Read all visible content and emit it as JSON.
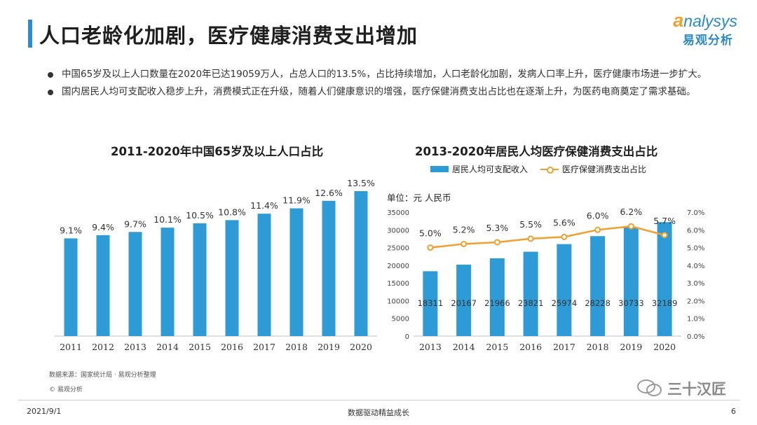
{
  "page": {
    "title": "人口老龄化加剧，医疗健康消费支出增加",
    "bullets": [
      "中国65岁及以上人口数量在2020年已达19059万人，占总人口的13.5%，占比持续增加，人口老龄化加剧，发病人口率上升，医疗健康市场进一步扩大。",
      "国内居民人均可支配收入稳步上升，消费模式正在升级，随着人们健康意识的增强，医疗保健消费支出占比也在逐渐上升，为医药电商奠定了需求基础。"
    ]
  },
  "logo": {
    "en_cap": "a",
    "en_rest": "nalysys",
    "cn": "易观分析"
  },
  "footer": {
    "source": "数据来源：国家统计局 · 易观分析整理",
    "copyright": "© 易观分析",
    "date": "2021/9/1",
    "center": "数据驱动精益成长",
    "page": "6",
    "watermark": "三十汉匠"
  },
  "colors": {
    "bar": "#2e9bd6",
    "line": "#f0a030",
    "accent": "#2c8bc8"
  },
  "chart_data": [
    {
      "type": "bar",
      "title": "2011-2020年中国65岁及以上人口占比",
      "categories": [
        "2011",
        "2012",
        "2013",
        "2014",
        "2015",
        "2016",
        "2017",
        "2018",
        "2019",
        "2020"
      ],
      "values": [
        9.1,
        9.4,
        9.7,
        10.1,
        10.5,
        10.8,
        11.4,
        11.9,
        12.6,
        13.5
      ],
      "data_labels": [
        "9.1%",
        "9.4%",
        "9.7%",
        "10.1%",
        "10.5%",
        "10.8%",
        "11.4%",
        "11.9%",
        "12.6%",
        "13.5%"
      ],
      "ylim": [
        0,
        15
      ],
      "grid": false
    },
    {
      "type": "bar",
      "title": "2013-2020年居民人均医疗保健消费支出占比",
      "unit_label": "单位：元 人民币",
      "categories": [
        "2013",
        "2014",
        "2015",
        "2016",
        "2017",
        "2018",
        "2019",
        "2020"
      ],
      "series": [
        {
          "name": "居民人均可支配收入",
          "type": "bar",
          "axis": "left",
          "values": [
            18311,
            20167,
            21966,
            23821,
            25974,
            28228,
            30733,
            32189
          ],
          "data_labels": [
            "18311",
            "20167",
            "21966",
            "23821",
            "25974",
            "28228",
            "30733",
            "32189"
          ]
        },
        {
          "name": "医疗保健消费支出占比",
          "type": "line",
          "axis": "right",
          "values": [
            5.0,
            5.2,
            5.3,
            5.5,
            5.6,
            6.0,
            6.2,
            5.7
          ],
          "data_labels": [
            "5.0%",
            "5.2%",
            "5.3%",
            "5.5%",
            "5.6%",
            "6.0%",
            "6.2%",
            "5.7%"
          ]
        }
      ],
      "y_left": {
        "min": 0,
        "max": 35000,
        "ticks": [
          "0",
          "5000",
          "10000",
          "15000",
          "20000",
          "25000",
          "30000",
          "35000"
        ]
      },
      "y_right": {
        "min": 0,
        "max": 7,
        "ticks": [
          "0.0%",
          "1.0%",
          "2.0%",
          "3.0%",
          "4.0%",
          "5.0%",
          "6.0%",
          "7.0%"
        ]
      },
      "grid": false,
      "legend": "top"
    }
  ]
}
